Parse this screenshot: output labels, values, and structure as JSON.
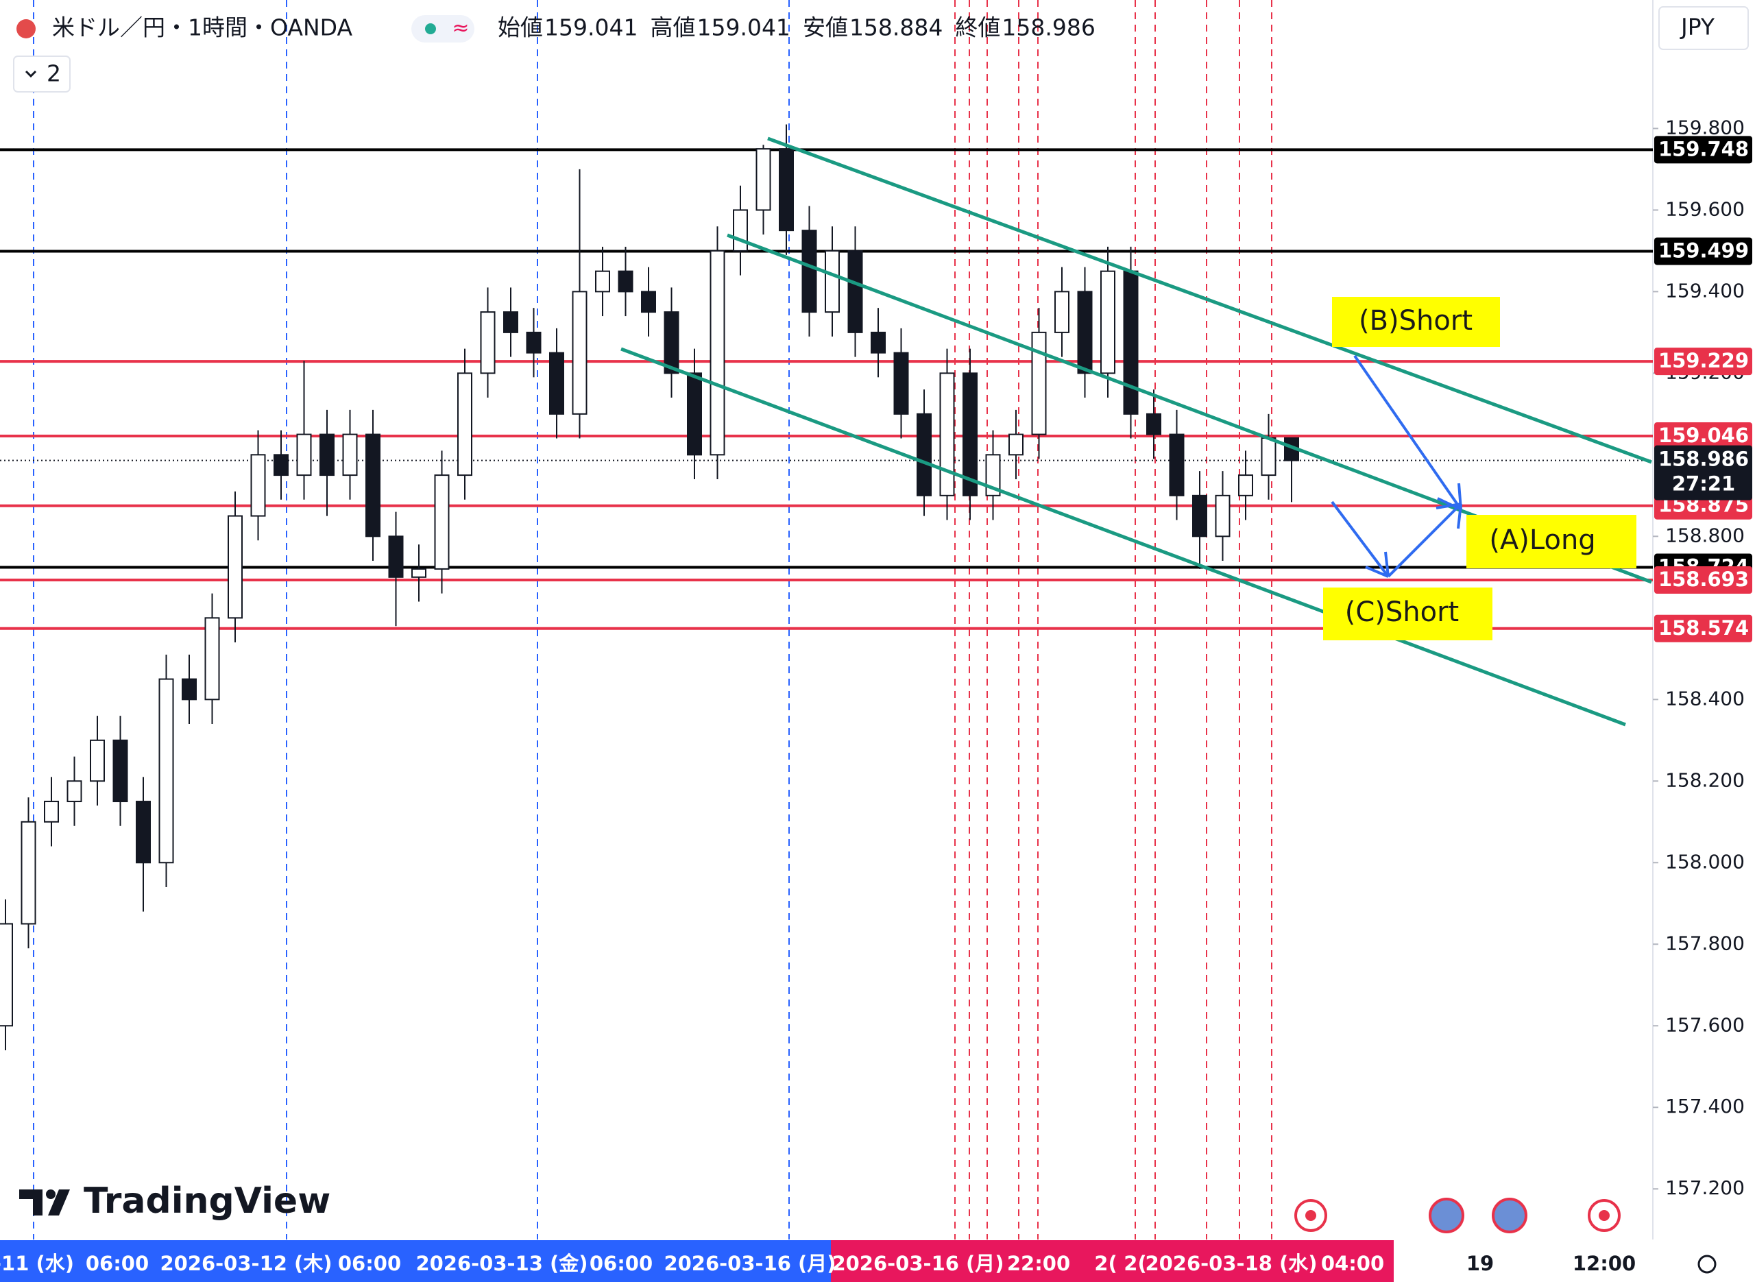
{
  "header": {
    "symbol": "米ドル／円・1時間・OANDA",
    "ohlc": [
      {
        "label": "始値",
        "value": 159.041
      },
      {
        "label": "高値",
        "value": 159.041
      },
      {
        "label": "安値",
        "value": 158.884
      },
      {
        "label": "終値",
        "value": 158.986
      }
    ],
    "currency": "JPY",
    "indicator_count": "2"
  },
  "watermark": "TradingView",
  "chart_data": {
    "type": "candlestick",
    "open": [
      157.6,
      157.85,
      158.1,
      158.15,
      158.2,
      158.3,
      158.15,
      158.0,
      158.45,
      158.4,
      158.6,
      158.85,
      159.0,
      158.95,
      159.05,
      158.95,
      159.05,
      158.8,
      158.7,
      158.72,
      158.95,
      159.2,
      159.35,
      159.3,
      159.25,
      159.1,
      159.4,
      159.45,
      159.4,
      159.35,
      159.2,
      159.0,
      159.5,
      159.6,
      159.75,
      159.55,
      159.35,
      159.5,
      159.3,
      159.25,
      159.1,
      158.9,
      159.2,
      158.9,
      159.0,
      159.05,
      159.3,
      159.4,
      159.2,
      159.45,
      159.1,
      159.05,
      158.9,
      158.8,
      158.9,
      158.95,
      159.041
    ],
    "high": [
      157.91,
      158.16,
      158.21,
      158.26,
      158.36,
      158.36,
      158.21,
      158.51,
      158.51,
      158.66,
      158.91,
      159.06,
      159.06,
      159.23,
      159.11,
      159.11,
      159.11,
      158.86,
      158.78,
      159.01,
      159.26,
      159.41,
      159.41,
      159.36,
      159.31,
      159.7,
      159.51,
      159.51,
      159.46,
      159.41,
      159.26,
      159.56,
      159.66,
      159.76,
      159.81,
      159.61,
      159.56,
      159.56,
      159.36,
      159.31,
      159.16,
      159.26,
      159.26,
      159.06,
      159.11,
      159.36,
      159.46,
      159.46,
      159.51,
      159.51,
      159.16,
      159.11,
      158.96,
      158.96,
      159.01,
      159.1,
      159.041
    ],
    "low": [
      157.54,
      157.79,
      158.04,
      158.09,
      158.14,
      158.09,
      157.88,
      157.94,
      158.34,
      158.34,
      158.54,
      158.79,
      158.89,
      158.89,
      158.85,
      158.89,
      158.74,
      158.58,
      158.64,
      158.66,
      158.89,
      159.14,
      159.24,
      159.19,
      159.04,
      159.04,
      159.34,
      159.34,
      159.29,
      159.14,
      158.94,
      158.94,
      159.44,
      159.54,
      159.49,
      159.29,
      159.29,
      159.24,
      159.19,
      159.04,
      158.85,
      158.84,
      158.84,
      158.84,
      158.94,
      158.99,
      159.24,
      159.14,
      159.14,
      159.04,
      158.99,
      158.84,
      158.72,
      158.74,
      158.84,
      158.89,
      158.884
    ],
    "close": [
      157.85,
      158.1,
      158.15,
      158.2,
      158.3,
      158.15,
      158.0,
      158.45,
      158.4,
      158.6,
      158.85,
      159.0,
      158.95,
      159.05,
      158.95,
      159.05,
      158.8,
      158.7,
      158.72,
      158.95,
      159.2,
      159.35,
      159.3,
      159.25,
      159.1,
      159.4,
      159.45,
      159.4,
      159.35,
      159.2,
      159.0,
      159.5,
      159.6,
      159.75,
      159.55,
      159.35,
      159.5,
      159.3,
      159.25,
      159.1,
      158.9,
      159.2,
      158.9,
      159.0,
      159.05,
      159.3,
      159.4,
      159.2,
      159.45,
      159.1,
      159.05,
      158.9,
      158.8,
      158.9,
      158.95,
      159.041,
      158.986
    ],
    "ylim": [
      157.076,
      160.115
    ],
    "yticks": [
      {
        "value": 159.8,
        "label": "159.800"
      },
      {
        "value": 159.6,
        "label": "159.600"
      },
      {
        "value": 159.4,
        "label": "159.400"
      },
      {
        "value": 159.2,
        "label": "159.200"
      },
      {
        "value": 158.8,
        "label": "158.800"
      },
      {
        "value": 158.4,
        "label": "158.400"
      },
      {
        "value": 158.2,
        "label": "158.200"
      },
      {
        "value": 158.0,
        "label": "158.000"
      },
      {
        "value": 157.8,
        "label": "157.800"
      },
      {
        "value": 157.6,
        "label": "157.600"
      },
      {
        "value": 157.4,
        "label": "157.400"
      },
      {
        "value": 157.2,
        "label": "157.200"
      }
    ],
    "time_labels": [
      "-11 (水)",
      "06:00",
      "2026-03-12 (木)",
      "06:00",
      "2026-03-13 (金)",
      "06:00",
      "2026-03-16 (月)",
      "2026-03-16 (月)",
      "22:00",
      "2(",
      "2(",
      "2026-03-18 (水)",
      "04:00",
      "19",
      "12:00"
    ],
    "levels": [
      {
        "value": 159.748,
        "color": "#000000"
      },
      {
        "value": 159.499,
        "color": "#000000"
      },
      {
        "value": 159.229,
        "color": "#e8324a"
      },
      {
        "value": 159.046,
        "color": "#e8324a"
      },
      {
        "value": 158.875,
        "color": "#e8324a"
      },
      {
        "value": 158.724,
        "color": "#000000"
      },
      {
        "value": 158.693,
        "color": "#e8324a"
      },
      {
        "value": 158.574,
        "color": "#e8324a"
      }
    ],
    "current_price": 158.986,
    "countdown": "27:21",
    "annotations": [
      "(B)Short",
      "(A)Long",
      "(C)Short"
    ]
  }
}
